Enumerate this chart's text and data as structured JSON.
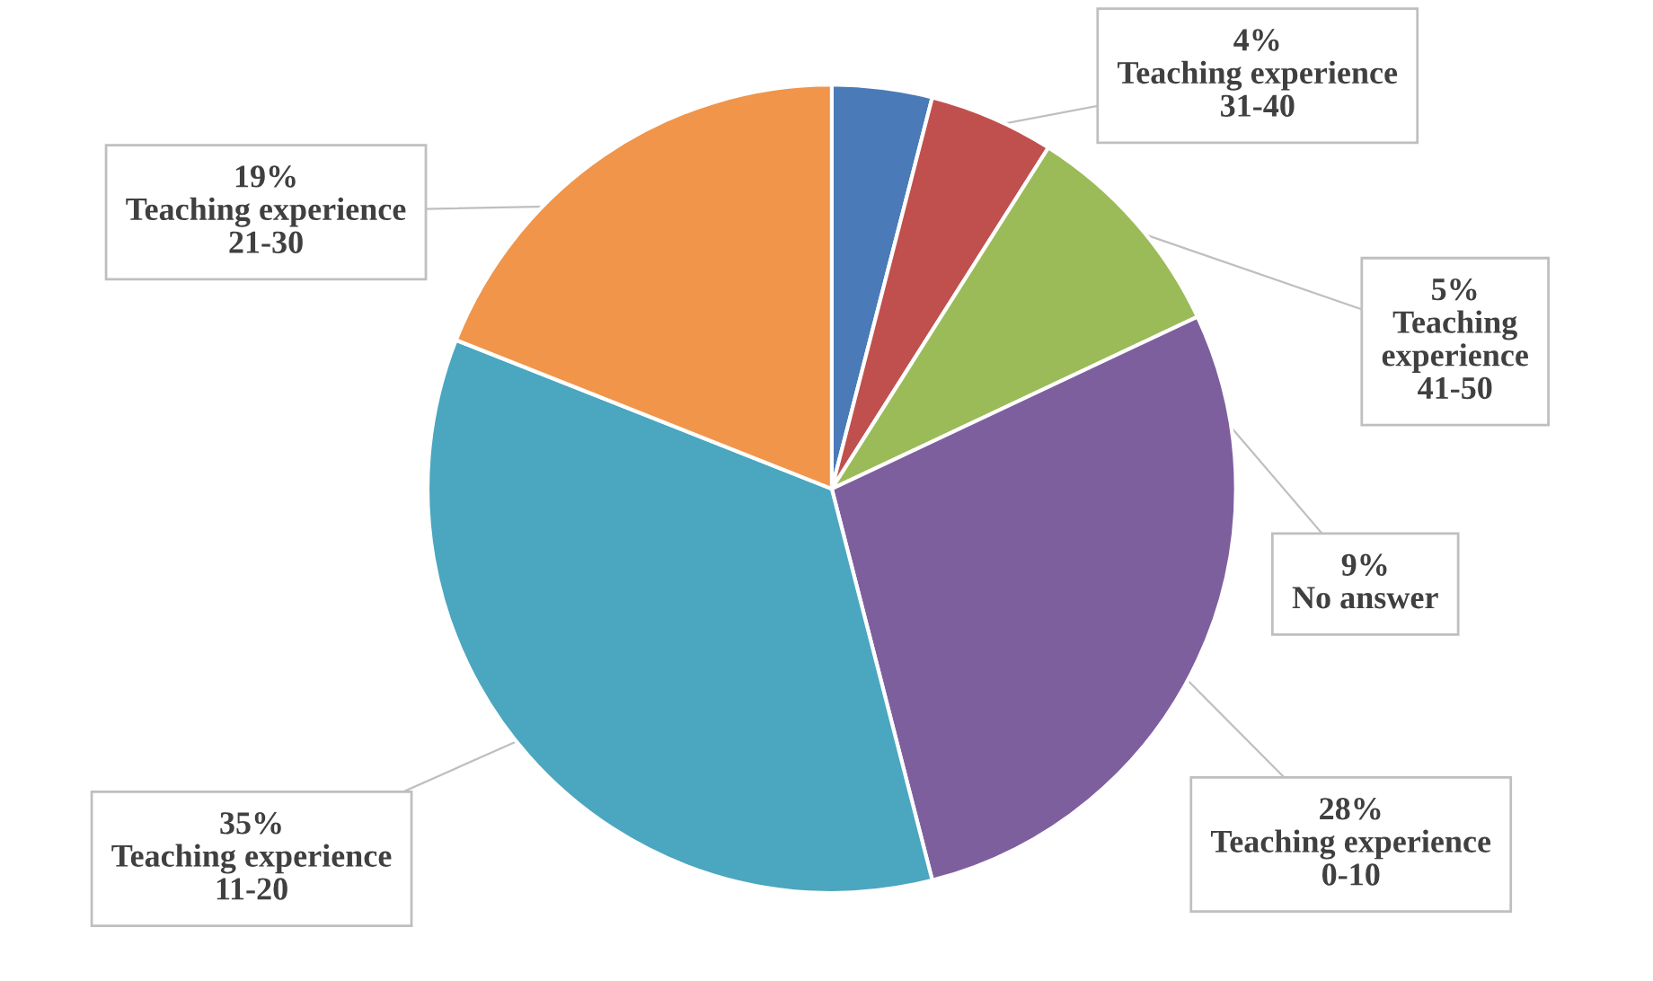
{
  "chart_data": {
    "type": "pie",
    "categories": [
      "Teaching experience 31-40",
      "Teaching experience 41-50",
      "No answer",
      "Teaching experience 0-10",
      "Teaching experience 11-20",
      "Teaching experience 21-30"
    ],
    "values": [
      4,
      5,
      9,
      28,
      35,
      19
    ],
    "value_labels": [
      "4%",
      "5%",
      "9%",
      "28%",
      "35%",
      "19%"
    ],
    "colors": [
      "#4a7ab8",
      "#c0504d",
      "#9bbb59",
      "#7e5f9e",
      "#4ba6bf",
      "#f0954a"
    ]
  }
}
